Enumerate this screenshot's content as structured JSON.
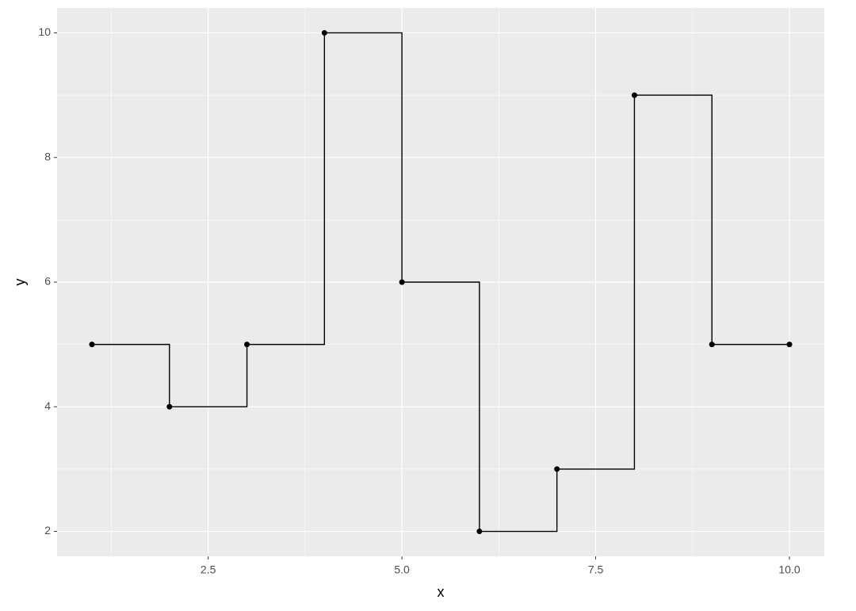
{
  "chart_data": {
    "type": "step",
    "x_label": "x",
    "y_label": "y",
    "x": [
      1,
      2,
      3,
      4,
      5,
      6,
      7,
      8,
      9,
      10
    ],
    "values": [
      5,
      4,
      5,
      10,
      6,
      2,
      3,
      9,
      5,
      5
    ],
    "color": "#000000",
    "panel_color": "#ebebeb",
    "grid": true,
    "xlim": [
      0.55,
      10.45
    ],
    "ylim": [
      1.6,
      10.4
    ],
    "xticks": [
      2.5,
      {
        "value": 5,
        "label": "5.0"
      },
      7.5,
      {
        "value": 10,
        "label": "10.0"
      }
    ],
    "yticks": [
      2,
      4,
      6,
      8,
      10
    ],
    "xminor": [
      1.25,
      3.75,
      6.25,
      8.75
    ],
    "yminor": [
      3,
      5,
      7,
      9
    ]
  }
}
